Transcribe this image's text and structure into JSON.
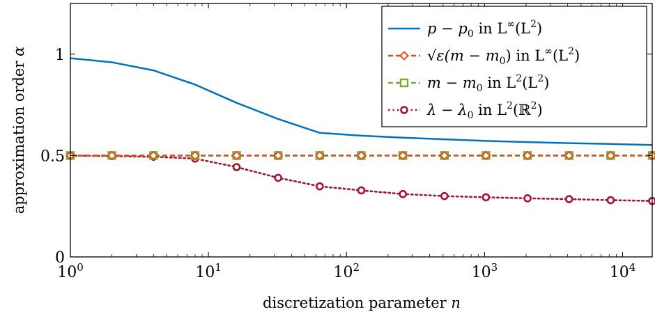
{
  "chart_data": {
    "type": "line",
    "xscale": "log",
    "xlabel": "discretization parameter n",
    "ylabel": "approximation order α",
    "xlim": [
      1,
      16384
    ],
    "ylim": [
      0,
      1.25
    ],
    "xticks": [
      {
        "value": 1,
        "base": "10",
        "exp": "0"
      },
      {
        "value": 10,
        "base": "10",
        "exp": "1"
      },
      {
        "value": 100,
        "base": "10",
        "exp": "2"
      },
      {
        "value": 1000,
        "base": "10",
        "exp": "3"
      },
      {
        "value": 10000,
        "base": "10",
        "exp": "4"
      }
    ],
    "yticks": [
      {
        "value": 0,
        "label": "0"
      },
      {
        "value": 0.5,
        "label": "0.5"
      },
      {
        "value": 1,
        "label": "1"
      }
    ],
    "legend_position": "top-right",
    "grid": false,
    "x": [
      1,
      2,
      4,
      8,
      16,
      32,
      64,
      128,
      256,
      512,
      1024,
      2048,
      4096,
      8192,
      16384
    ],
    "series": [
      {
        "name": "p − p0 in L∞(L2)",
        "color": "#0072bd",
        "style": "solid",
        "marker": "none",
        "values": [
          0.98,
          0.96,
          0.92,
          0.85,
          0.76,
          0.68,
          0.612,
          0.598,
          0.588,
          0.58,
          0.572,
          0.566,
          0.561,
          0.557,
          0.552
        ]
      },
      {
        "name": "√ε(m − m0) in L∞(L2)",
        "color": "#d95319",
        "style": "dashed",
        "marker": "diamond",
        "values": [
          0.5,
          0.5,
          0.5,
          0.5,
          0.5,
          0.5,
          0.5,
          0.5,
          0.5,
          0.5,
          0.5,
          0.5,
          0.5,
          0.5,
          0.5
        ]
      },
      {
        "name": "m − m0 in L2(L2)",
        "color": "#77ac30",
        "style": "dashed",
        "marker": "square",
        "values": [
          0.5,
          0.5,
          0.5,
          0.5,
          0.5,
          0.5,
          0.5,
          0.5,
          0.5,
          0.5,
          0.5,
          0.5,
          0.5,
          0.5,
          0.5
        ]
      },
      {
        "name": "λ − λ0 in L2(ℝ2)",
        "color": "#a2142f",
        "style": "dotted",
        "marker": "circle",
        "values": [
          0.5,
          0.497,
          0.494,
          0.485,
          0.443,
          0.39,
          0.348,
          0.328,
          0.31,
          0.3,
          0.294,
          0.289,
          0.285,
          0.28,
          0.276
        ]
      }
    ]
  },
  "legend": [
    {
      "lead": "p − p",
      "sub": "0",
      "mid": " in L",
      "sup": "∞",
      "tail": "(L",
      "sup2": "2",
      "end": ")"
    },
    {
      "lead": "√ε(m − m",
      "sub": "0",
      "mid": ") in L",
      "sup": "∞",
      "tail": "(L",
      "sup2": "2",
      "end": ")"
    },
    {
      "lead": "m − m",
      "sub": "0",
      "mid": " in L",
      "sup": "2",
      "tail": "(L",
      "sup2": "2",
      "end": ")"
    },
    {
      "lead": "λ − λ",
      "sub": "0",
      "mid": " in L",
      "sup": "2",
      "tail": "(ℝ",
      "sup2": "2",
      "end": ")"
    }
  ]
}
